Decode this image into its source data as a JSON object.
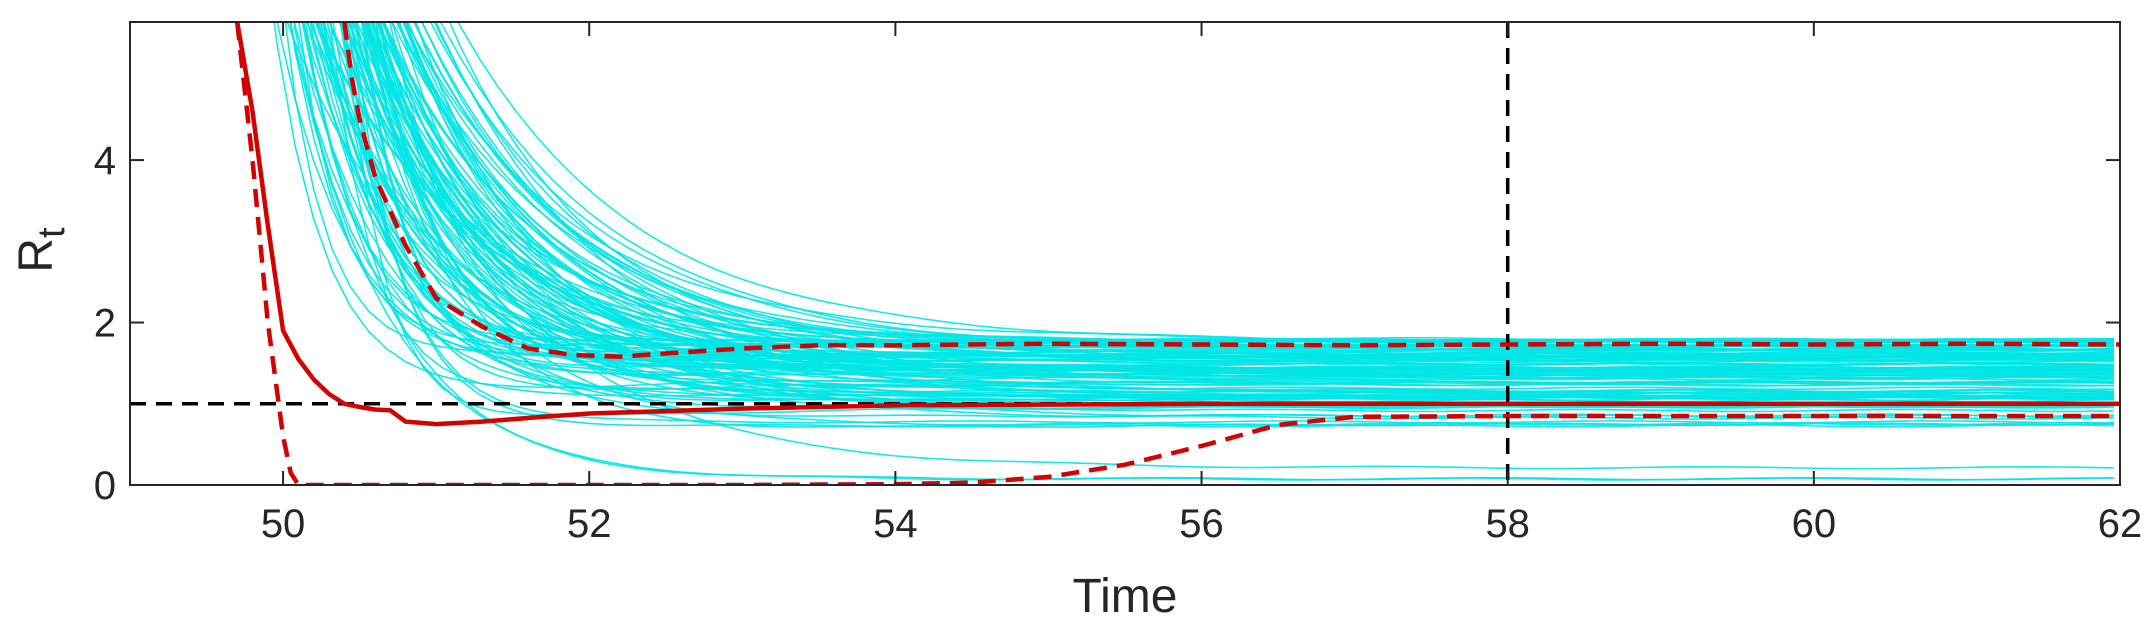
{
  "chart_data": {
    "type": "line",
    "title": "",
    "xlabel": "Time",
    "ylabel": "R",
    "ylabel_subscript": "t",
    "xlim": [
      49,
      62
    ],
    "ylim": [
      0,
      5.7
    ],
    "xticks": [
      50,
      52,
      54,
      56,
      58,
      60,
      62
    ],
    "yticks": [
      0,
      2,
      4
    ],
    "grid": false,
    "reference_lines": {
      "horizontal_y": 1,
      "vertical_x": 58,
      "color": "#000000",
      "style": "dashed"
    },
    "colors": {
      "trajectories": "#00e5e5",
      "median": "#d40000",
      "bounds": "#d40000",
      "axes": "#262626"
    },
    "median": {
      "x": [
        49.7,
        49.8,
        49.9,
        50.0,
        50.1,
        50.2,
        50.3,
        50.4,
        50.5,
        50.6,
        50.7,
        50.8,
        51.0,
        51.3,
        51.7,
        52.0,
        52.5,
        53.0,
        53.5,
        54.0,
        55.0,
        56.0,
        57.0,
        58.0,
        60.0,
        62.0
      ],
      "y": [
        5.7,
        4.6,
        3.2,
        1.9,
        1.55,
        1.3,
        1.12,
        1.0,
        0.96,
        0.93,
        0.92,
        0.78,
        0.75,
        0.78,
        0.84,
        0.88,
        0.91,
        0.94,
        0.96,
        0.98,
        0.99,
        1.0,
        1.0,
        1.0,
        1.0,
        1.0
      ]
    },
    "upper_bound": {
      "x": [
        50.4,
        50.45,
        50.5,
        50.6,
        50.8,
        51.0,
        51.3,
        51.6,
        51.9,
        52.2,
        52.5,
        53.0,
        53.5,
        54.0,
        55.0,
        56.0,
        57.0,
        58.0,
        59.0,
        60.0,
        61.0,
        62.0
      ],
      "y": [
        5.7,
        5.0,
        4.5,
        3.8,
        2.95,
        2.3,
        1.95,
        1.68,
        1.6,
        1.58,
        1.62,
        1.68,
        1.72,
        1.72,
        1.74,
        1.73,
        1.72,
        1.73,
        1.74,
        1.73,
        1.74,
        1.73
      ]
    },
    "lower_bound": {
      "x": [
        49.7,
        49.8,
        49.9,
        50.0,
        50.05,
        50.1,
        51.0,
        52.0,
        53.0,
        54.0,
        54.5,
        55.0,
        55.5,
        56.0,
        56.5,
        57.0,
        58.0,
        60.0,
        62.0
      ],
      "y": [
        5.7,
        4.0,
        2.0,
        0.6,
        0.15,
        0.0,
        0.0,
        0.0,
        0.0,
        0.01,
        0.03,
        0.1,
        0.25,
        0.48,
        0.74,
        0.84,
        0.85,
        0.85,
        0.85
      ]
    },
    "trajectories": {
      "count": 120,
      "description_note": ""
    }
  }
}
